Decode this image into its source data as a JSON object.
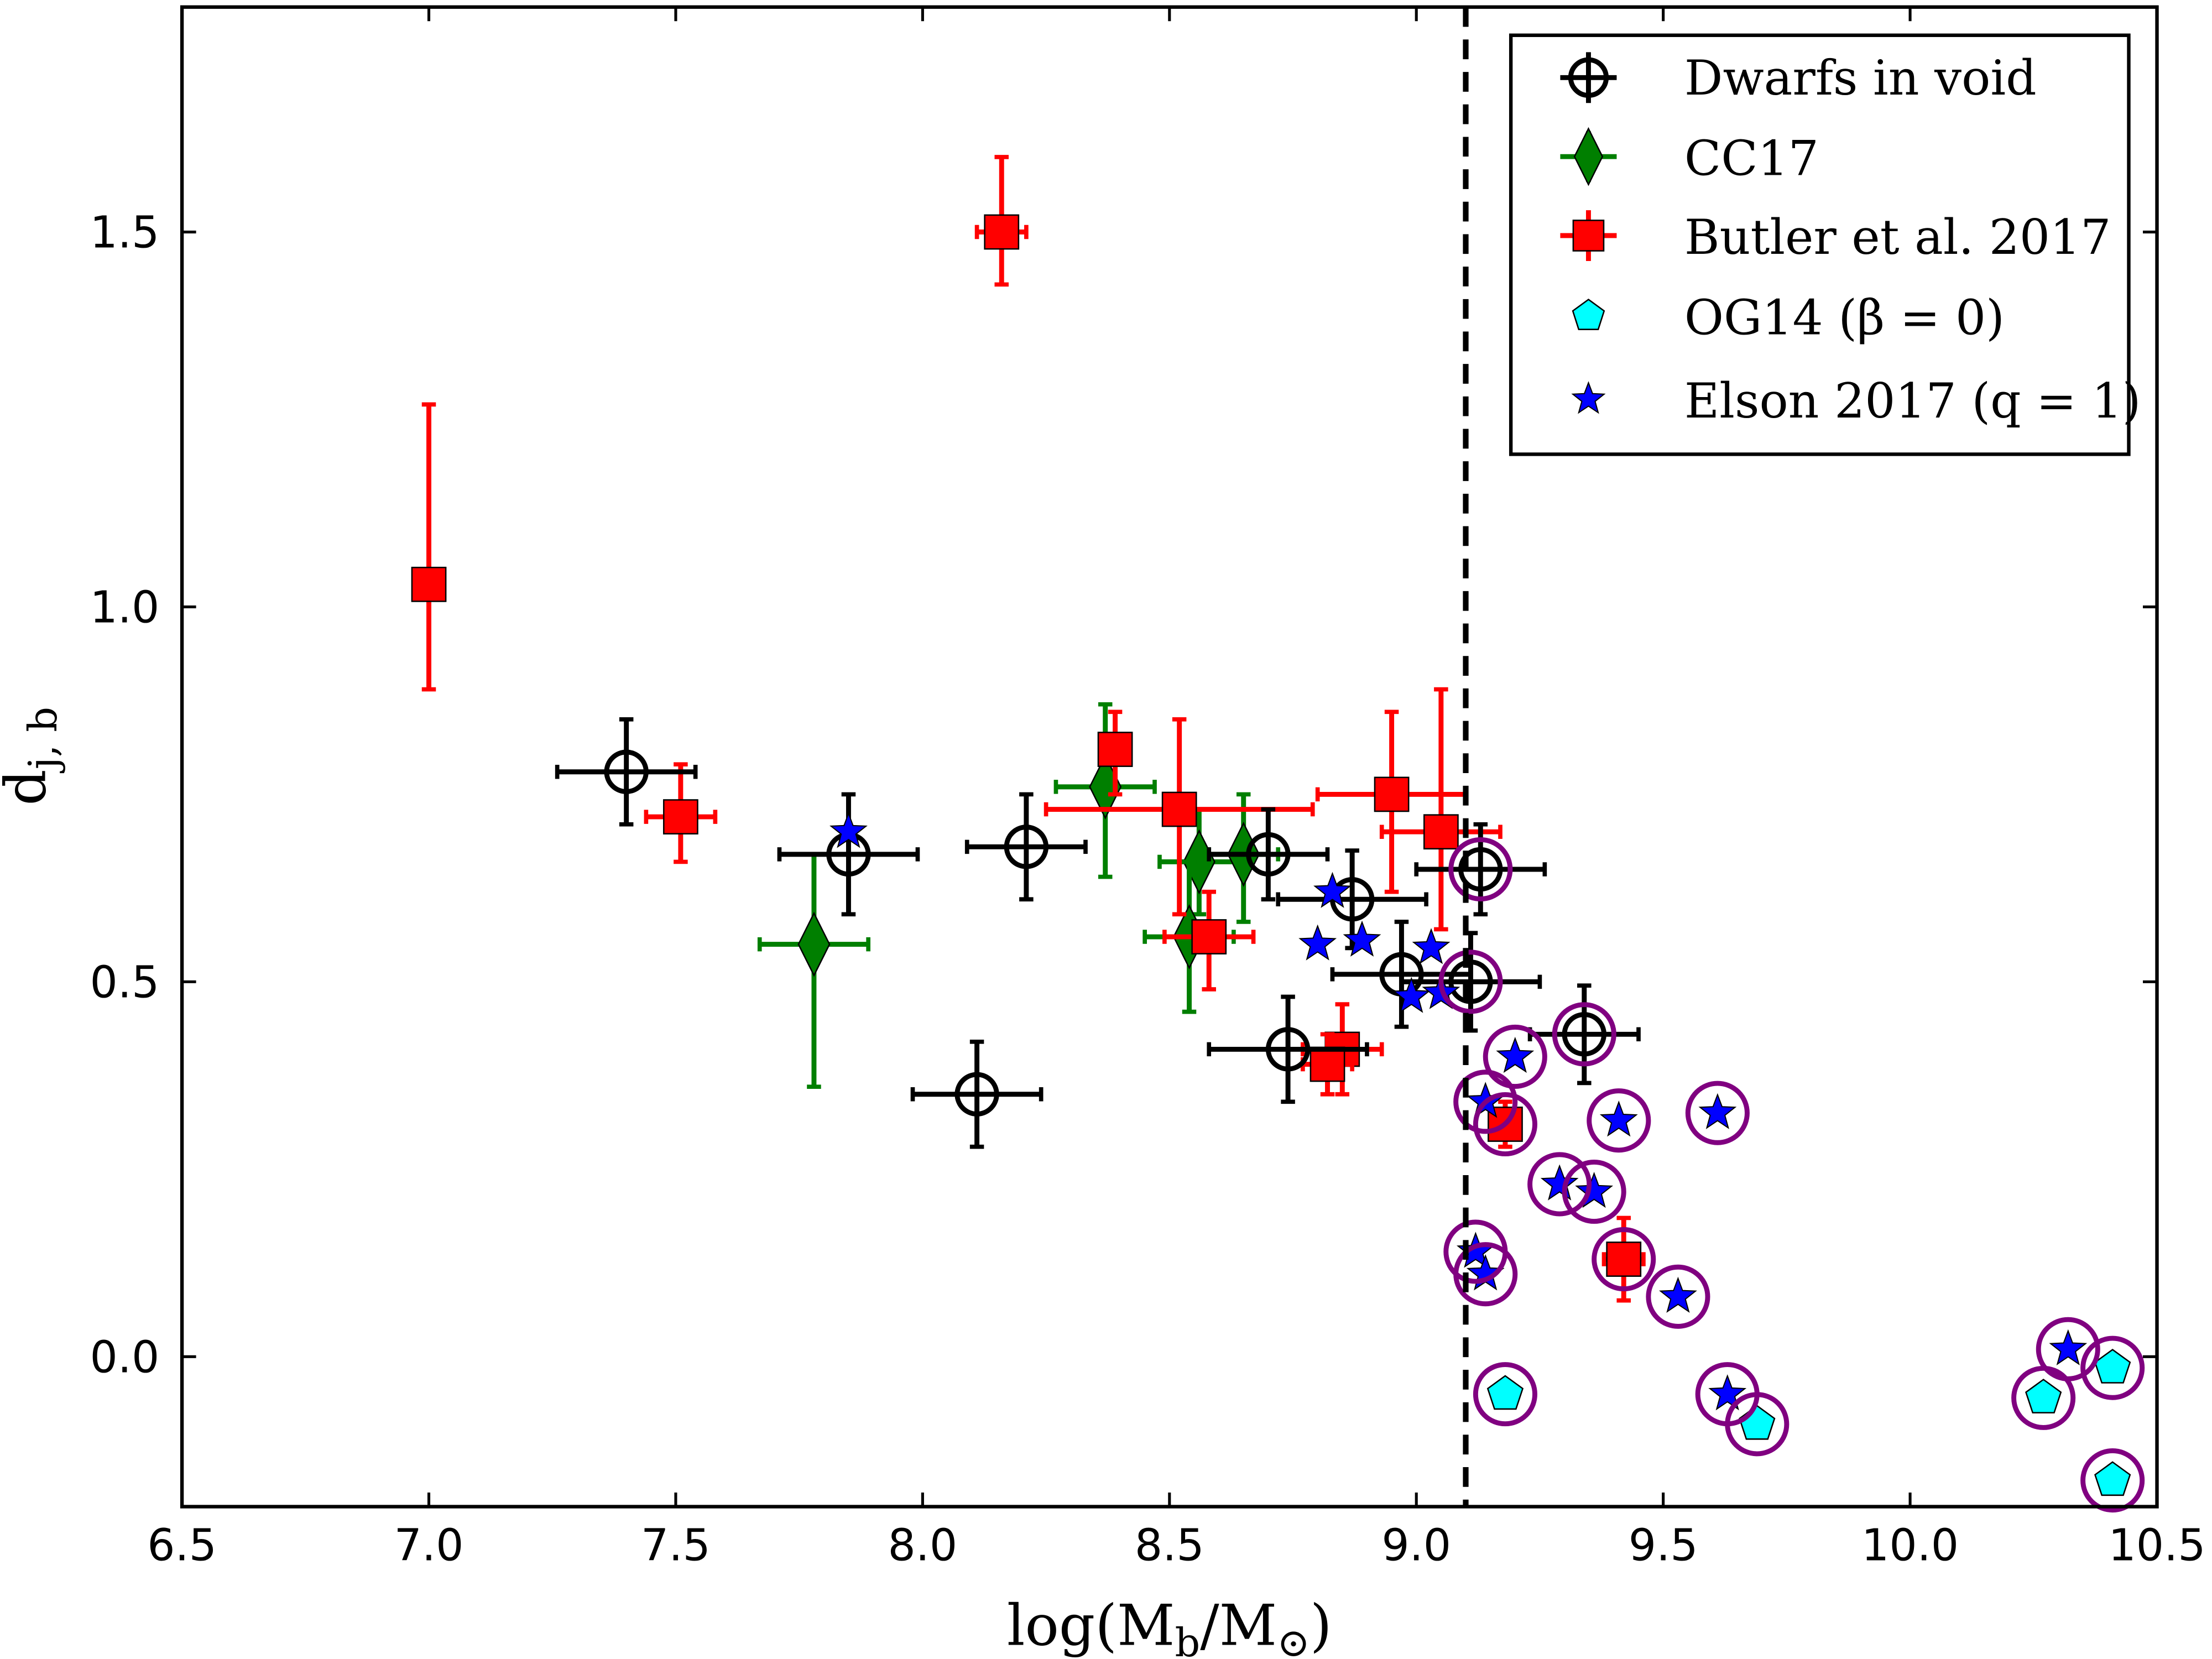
{
  "chart_data": {
    "type": "scatter",
    "title": "",
    "xlabel": "log(M_b/M_⊙)",
    "xlabel_main": "log(M",
    "xlabel_sub1": "b",
    "xlabel_mid": "/M",
    "xlabel_sub2": "⊙",
    "xlabel_end": ")",
    "ylabel": "d_{j,b}",
    "ylabel_main": "d",
    "ylabel_sub": "j, b",
    "xlim": [
      6.5,
      10.5
    ],
    "ylim": [
      -0.2,
      1.8
    ],
    "xticks": [
      "6.5",
      "7.0",
      "7.5",
      "8.0",
      "8.5",
      "9.0",
      "9.5",
      "10.0",
      "10.5"
    ],
    "yticks": [
      "0.0",
      "0.5",
      "1.0",
      "1.5"
    ],
    "grid": false,
    "legend_position": "top-right",
    "vline": {
      "x": 9.1,
      "style": "dashed",
      "color": "#000000"
    },
    "series": [
      {
        "name": "Dwarfs in void",
        "marker": "circle-cross-open",
        "color": "#000000",
        "points": [
          {
            "x": 7.4,
            "y": 0.78,
            "xerr": 0.14,
            "yerr": [
              0.07,
              0.07
            ]
          },
          {
            "x": 7.85,
            "y": 0.67,
            "xerr": 0.14,
            "yerr": [
              0.08,
              0.08
            ]
          },
          {
            "x": 8.21,
            "y": 0.68,
            "xerr": 0.12,
            "yerr": [
              0.07,
              0.07
            ]
          },
          {
            "x": 8.11,
            "y": 0.35,
            "xerr": 0.13,
            "yerr": [
              0.07,
              0.07
            ]
          },
          {
            "x": 8.74,
            "y": 0.41,
            "xerr": 0.16,
            "yerr": [
              0.07,
              0.07
            ]
          },
          {
            "x": 8.7,
            "y": 0.67,
            "xerr": 0.12,
            "yerr": [
              0.06,
              0.06
            ]
          },
          {
            "x": 8.87,
            "y": 0.61,
            "xerr": 0.15,
            "yerr": [
              0.065,
              0.065
            ]
          },
          {
            "x": 8.97,
            "y": 0.51,
            "xerr": 0.14,
            "yerr": [
              0.07,
              0.07
            ]
          },
          {
            "x": 9.13,
            "y": 0.65,
            "xerr": 0.13,
            "yerr": [
              0.06,
              0.06
            ]
          },
          {
            "x": 9.11,
            "y": 0.5,
            "xerr": 0.14,
            "yerr": [
              0.065,
              0.065
            ]
          },
          {
            "x": 9.34,
            "y": 0.43,
            "xerr": 0.11,
            "yerr": [
              0.065,
              0.065
            ]
          }
        ]
      },
      {
        "name": "CC17",
        "marker": "diamond",
        "color": "#007f00",
        "points": [
          {
            "x": 7.78,
            "y": 0.55,
            "xerr": 0.11,
            "yerr": [
              0.19,
              0.12
            ]
          },
          {
            "x": 8.37,
            "y": 0.76,
            "xerr": 0.1,
            "yerr": [
              0.12,
              0.11
            ]
          },
          {
            "x": 8.56,
            "y": 0.66,
            "xerr": 0.08,
            "yerr": [
              0.07,
              0.07
            ]
          },
          {
            "x": 8.65,
            "y": 0.67,
            "xerr": 0.07,
            "yerr": [
              0.09,
              0.08
            ]
          },
          {
            "x": 8.54,
            "y": 0.56,
            "xerr": 0.09,
            "yerr": [
              0.1,
              0.1
            ]
          }
        ]
      },
      {
        "name": "Butler et al. 2017",
        "marker": "square",
        "color": "#ff0000",
        "points": [
          {
            "x": 7.0,
            "y": 1.03,
            "xerr": 0.03,
            "yerr": [
              0.14,
              0.24
            ]
          },
          {
            "x": 8.16,
            "y": 1.5,
            "xerr": 0.05,
            "yerr": [
              0.07,
              0.1
            ]
          },
          {
            "x": 7.51,
            "y": 0.72,
            "xerr": 0.07,
            "yerr": [
              0.06,
              0.07
            ]
          },
          {
            "x": 8.39,
            "y": 0.81,
            "xerr": 0.03,
            "yerr": [
              0.06,
              0.05
            ]
          },
          {
            "x": 8.52,
            "y": 0.73,
            "xerr": 0.27,
            "yerr": [
              0.14,
              0.12
            ]
          },
          {
            "x": 8.58,
            "y": 0.56,
            "xerr": 0.09,
            "yerr": [
              0.07,
              0.06
            ]
          },
          {
            "x": 8.95,
            "y": 0.75,
            "xerr": 0.15,
            "yerr": [
              0.13,
              0.11
            ]
          },
          {
            "x": 9.05,
            "y": 0.7,
            "xerr": 0.12,
            "yerr": [
              0.13,
              0.19
            ]
          },
          {
            "x": 8.85,
            "y": 0.41,
            "xerr": 0.08,
            "yerr": [
              0.06,
              0.06
            ]
          },
          {
            "x": 8.82,
            "y": 0.39,
            "xerr": 0.05,
            "yerr": [
              0.04,
              0.04
            ]
          },
          {
            "x": 9.18,
            "y": 0.31,
            "xerr": 0.03,
            "yerr": [
              0.03,
              0.03
            ]
          },
          {
            "x": 9.42,
            "y": 0.13,
            "xerr": 0.04,
            "yerr": [
              0.055,
              0.055
            ]
          }
        ]
      },
      {
        "name": "OG14 (β = 0)",
        "marker": "pentagon",
        "color": "#00ffff",
        "points": [
          {
            "x": 9.18,
            "y": -0.05
          },
          {
            "x": 9.69,
            "y": -0.09
          },
          {
            "x": 10.27,
            "y": -0.055
          },
          {
            "x": 10.41,
            "y": -0.015
          },
          {
            "x": 10.41,
            "y": -0.165
          }
        ]
      },
      {
        "name": "Elson 2017 (q = 1)",
        "marker": "star",
        "color": "#0000ff",
        "points": [
          {
            "x": 7.85,
            "y": 0.7
          },
          {
            "x": 8.83,
            "y": 0.62
          },
          {
            "x": 8.8,
            "y": 0.55
          },
          {
            "x": 8.89,
            "y": 0.555
          },
          {
            "x": 9.03,
            "y": 0.545
          },
          {
            "x": 8.99,
            "y": 0.48
          },
          {
            "x": 9.05,
            "y": 0.485
          },
          {
            "x": 9.2,
            "y": 0.4
          },
          {
            "x": 9.14,
            "y": 0.34
          },
          {
            "x": 9.41,
            "y": 0.315
          },
          {
            "x": 9.61,
            "y": 0.325
          },
          {
            "x": 9.29,
            "y": 0.23
          },
          {
            "x": 9.36,
            "y": 0.22
          },
          {
            "x": 9.12,
            "y": 0.14
          },
          {
            "x": 9.14,
            "y": 0.11
          },
          {
            "x": 9.53,
            "y": 0.08
          },
          {
            "x": 9.63,
            "y": -0.05
          },
          {
            "x": 10.32,
            "y": 0.01
          }
        ]
      }
    ],
    "circled_points": {
      "color": "#800080",
      "points": [
        {
          "x": 9.13,
          "y": 0.65
        },
        {
          "x": 9.11,
          "y": 0.5
        },
        {
          "x": 9.34,
          "y": 0.43
        },
        {
          "x": 9.2,
          "y": 0.4
        },
        {
          "x": 9.14,
          "y": 0.34
        },
        {
          "x": 9.18,
          "y": 0.31
        },
        {
          "x": 9.41,
          "y": 0.315
        },
        {
          "x": 9.61,
          "y": 0.325
        },
        {
          "x": 9.29,
          "y": 0.23
        },
        {
          "x": 9.36,
          "y": 0.22
        },
        {
          "x": 9.12,
          "y": 0.14
        },
        {
          "x": 9.14,
          "y": 0.11
        },
        {
          "x": 9.42,
          "y": 0.13
        },
        {
          "x": 9.53,
          "y": 0.08
        },
        {
          "x": 9.63,
          "y": -0.05
        },
        {
          "x": 10.32,
          "y": 0.01
        },
        {
          "x": 9.18,
          "y": -0.05
        },
        {
          "x": 9.69,
          "y": -0.09
        },
        {
          "x": 10.27,
          "y": -0.055
        },
        {
          "x": 10.41,
          "y": -0.015
        },
        {
          "x": 10.41,
          "y": -0.165
        }
      ]
    }
  }
}
